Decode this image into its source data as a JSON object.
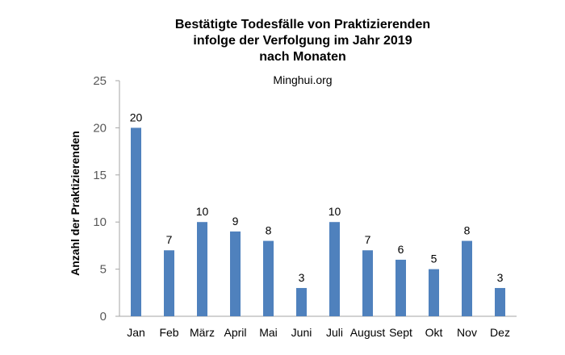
{
  "chart_data": {
    "type": "bar",
    "title_lines": [
      "Bestätigte Todesfälle von Praktizierenden",
      "infolge der Verfolgung im Jahr 2019",
      "nach Monaten"
    ],
    "subtitle": "Minghui.org",
    "xlabel": "",
    "ylabel": "Anzahl der Praktizierenden",
    "categories": [
      "Jan",
      "Feb",
      "März",
      "April",
      "Mai",
      "Juni",
      "Juli",
      "August",
      "Sept",
      "Okt",
      "Nov",
      "Dez"
    ],
    "values": [
      20,
      7,
      10,
      9,
      8,
      3,
      10,
      7,
      6,
      5,
      8,
      3
    ],
    "ylim": [
      0,
      25
    ],
    "yticks": [
      0,
      5,
      10,
      15,
      20,
      25
    ],
    "grid": false,
    "legend": "none",
    "colors": {
      "bar": "#4F81BD",
      "axis": "#A6A6A6",
      "tick_label": "#595959"
    }
  }
}
